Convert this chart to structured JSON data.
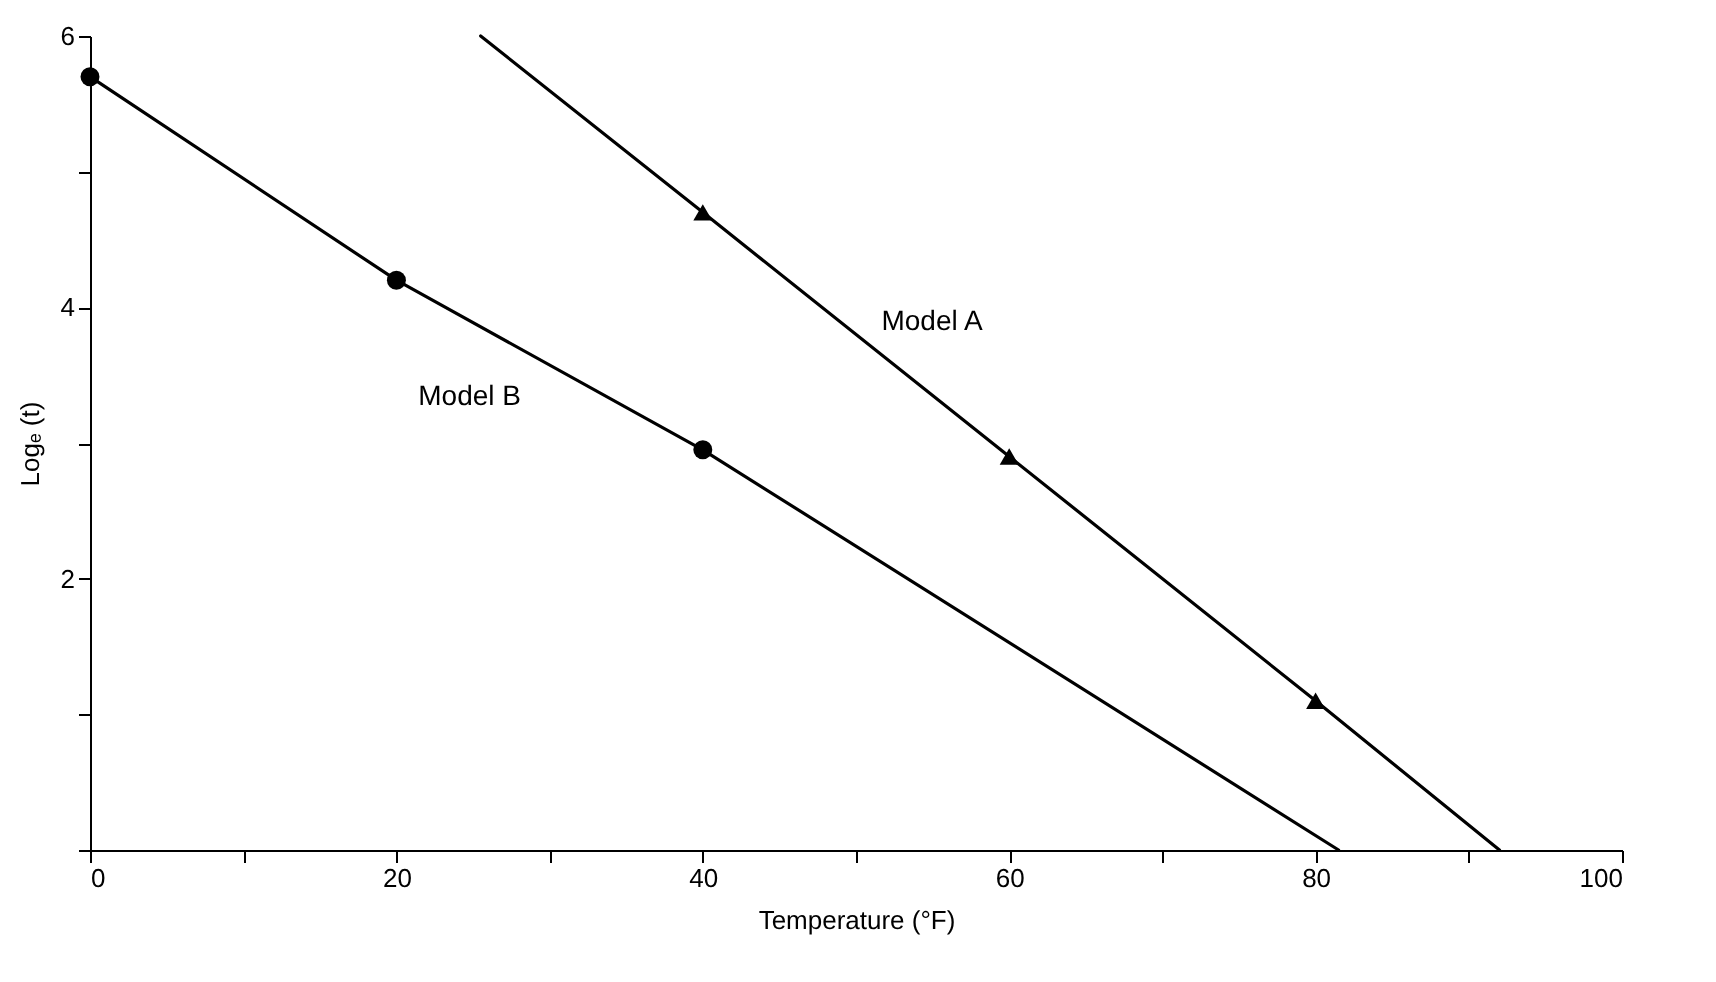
{
  "chart_data": {
    "type": "scatter",
    "xlabel": "Temperature (°F)",
    "ylabel": "Logₑ (t)",
    "xlim": [
      0,
      100
    ],
    "ylim": [
      0,
      6
    ],
    "xticks": [
      0,
      {
        "value": 10,
        "label": null
      },
      20,
      {
        "value": 30,
        "label": null
      },
      40,
      {
        "value": 50,
        "label": null
      },
      60,
      {
        "value": 70,
        "label": null
      },
      80,
      {
        "value": 90,
        "label": null
      },
      100
    ],
    "yticks": [
      {
        "value": 0,
        "label": null
      },
      {
        "value": 1,
        "label": null
      },
      2,
      {
        "value": 3,
        "label": null
      },
      4,
      {
        "value": 5,
        "label": null
      },
      6
    ],
    "series": [
      {
        "marker": "triangle",
        "color": "#000000",
        "x": [
          40,
          60,
          80
        ],
        "values": [
          4.7,
          2.9,
          1.1
        ]
      },
      {
        "marker": "circle",
        "color": "#000000",
        "x": [
          0,
          20,
          40
        ],
        "values": [
          5.7,
          4.2,
          2.95
        ]
      },
      {
        "name": "Model A",
        "type": "line",
        "color": "#000000",
        "x": [
          25.5,
          40,
          60,
          80,
          92
        ],
        "values": [
          6,
          4.7,
          2.9,
          1.1,
          0
        ]
      },
      {
        "name": "Model B",
        "type": "line",
        "color": "#000000",
        "x": [
          0,
          20,
          40,
          81.5
        ],
        "values": [
          5.7,
          4.2,
          2.95,
          0
        ]
      }
    ]
  }
}
